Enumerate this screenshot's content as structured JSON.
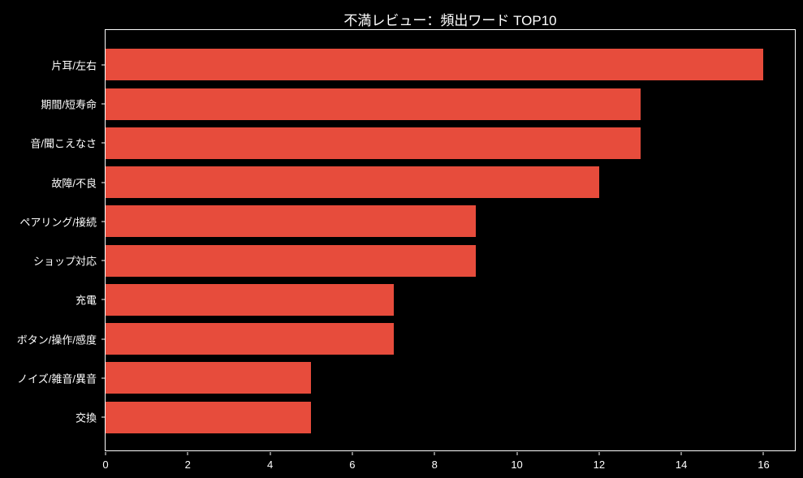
{
  "chart_data": {
    "type": "bar",
    "orientation": "horizontal",
    "title": "不満レビュー：頻出ワード TOP10",
    "categories": [
      "片耳/左右",
      "期間/短寿命",
      "音/聞こえなさ",
      "故障/不良",
      "ペアリング/接続",
      "ショップ対応",
      "充電",
      "ボタン/操作/感度",
      "ノイズ/雑音/異音",
      "交換"
    ],
    "values": [
      16,
      13,
      13,
      12,
      9,
      9,
      7,
      7,
      5,
      5
    ],
    "xlabel": "",
    "ylabel": "",
    "xticks": [
      0,
      2,
      4,
      6,
      8,
      10,
      12,
      14,
      16
    ],
    "xlim": [
      0,
      16.8
    ],
    "grid": false,
    "legend": null,
    "bar_color": "#e74c3c",
    "background_color": "#000000",
    "text_color": "#ffffff",
    "spine_color": "#ffffff"
  }
}
